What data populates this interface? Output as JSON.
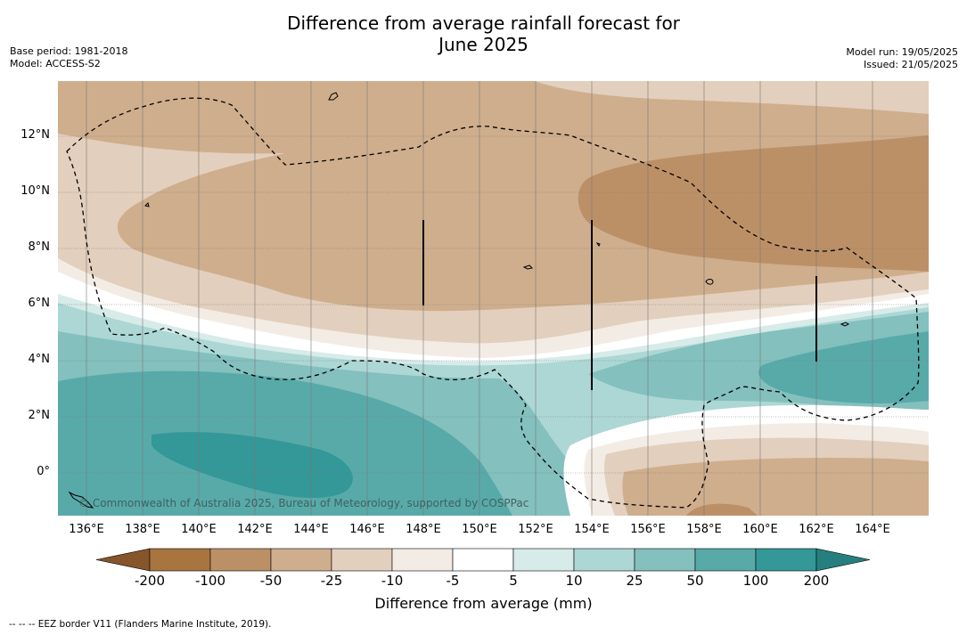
{
  "title": {
    "line1": "Difference from average rainfall forecast for",
    "line2": "June 2025"
  },
  "meta": {
    "base_period": "Base period: 1981-2018",
    "model": "Model: ACCESS-S2",
    "model_run": "Model run: 19/05/2025",
    "issued": "Issued: 21/05/2025"
  },
  "map": {
    "x_ticks": [
      "136°E",
      "138°E",
      "140°E",
      "142°E",
      "144°E",
      "146°E",
      "148°E",
      "150°E",
      "152°E",
      "154°E",
      "156°E",
      "158°E",
      "160°E",
      "162°E",
      "164°E"
    ],
    "y_ticks": [
      "12°N",
      "10°N",
      "8°N",
      "6°N",
      "4°N",
      "2°N",
      "0°"
    ],
    "copyright": "© Commonwealth of Australia 2025, Bureau of Meteorology, supported by COSPPac"
  },
  "colorbar": {
    "labels": [
      "-200",
      "-100",
      "-50",
      "-25",
      "-10",
      "-5",
      "5",
      "10",
      "25",
      "50",
      "100",
      "200"
    ],
    "colors": [
      "#a87540",
      "#bc9067",
      "#cfae8d",
      "#e3cfbd",
      "#f3ece5",
      "#ffffff",
      "#d7ebe9",
      "#acd7d5",
      "#83c0be",
      "#58aaa9",
      "#339897",
      "#257f7e"
    ],
    "title": "Difference from average (mm)"
  },
  "footnote": "--  --  -- EEZ border V11 (Flanders Marine Institute, 2019)."
}
